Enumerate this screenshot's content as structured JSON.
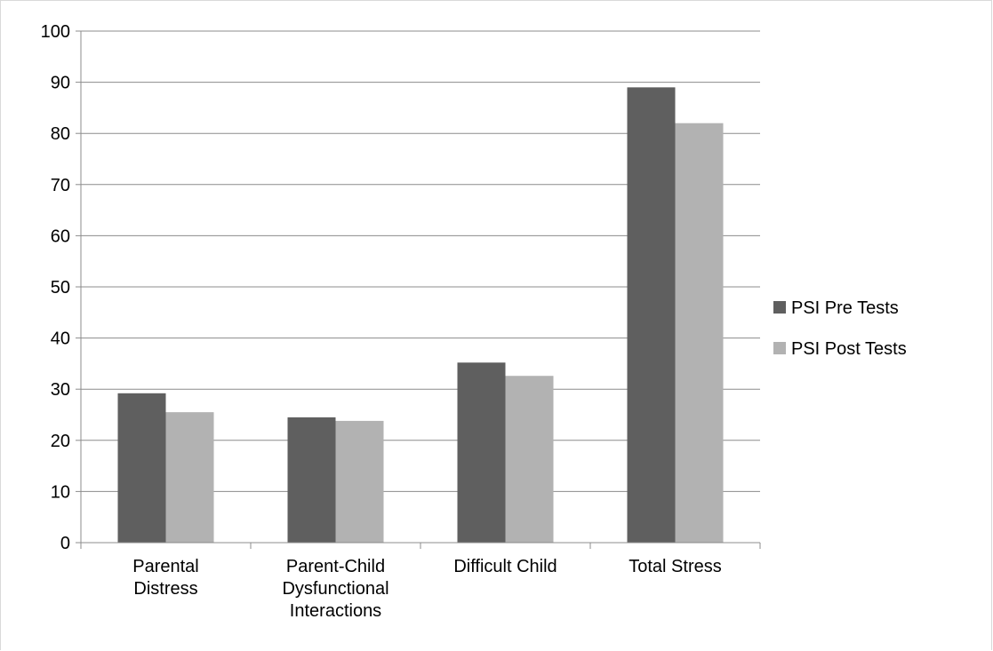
{
  "chart_data": {
    "type": "bar",
    "categories": [
      [
        "Parental",
        "Distress"
      ],
      [
        "Parent-Child",
        "Dysfunctional",
        "Interactions"
      ],
      [
        "Difficult Child"
      ],
      [
        "Total Stress"
      ]
    ],
    "series": [
      {
        "name": "PSI Pre Tests",
        "color": "#5f5f5f",
        "values": [
          29.2,
          24.5,
          35.2,
          89.0
        ]
      },
      {
        "name": "PSI Post Tests",
        "color": "#b2b2b2",
        "values": [
          25.5,
          23.8,
          32.6,
          82.0
        ]
      }
    ],
    "ylim": [
      0,
      100
    ],
    "yticks": [
      0,
      10,
      20,
      30,
      40,
      50,
      60,
      70,
      80,
      90,
      100
    ],
    "grid": true,
    "legend": "right"
  }
}
